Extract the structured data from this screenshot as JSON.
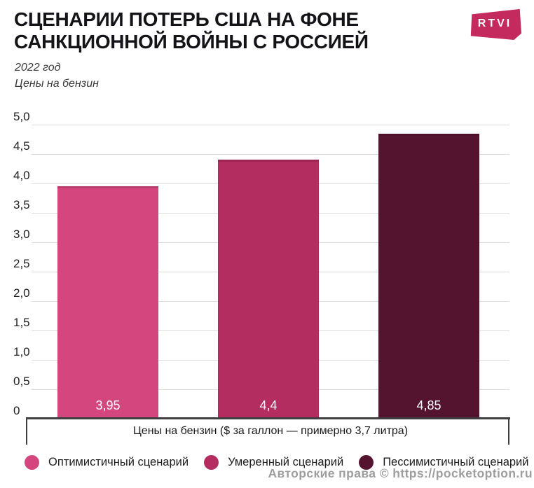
{
  "header": {
    "title_line1": "СЦЕНАРИИ ПОТЕРЬ США НА ФОНЕ",
    "title_line2": "САНКЦИОННОЙ ВОЙНЫ С РОССИЕЙ",
    "subtitle_year": "2022 год",
    "subtitle_metric": "Цены на бензин",
    "logo_text": "RTVI",
    "logo_color": "#c42a5e"
  },
  "chart_data": {
    "type": "bar",
    "title": "Цены на бензин, 2022 год",
    "categories": [
      "Оптимистичный сценарий",
      "Умеренный сценарий",
      "Пессимистичный сценарий"
    ],
    "values": [
      3.95,
      4.4,
      4.85
    ],
    "value_labels": [
      "3,95",
      "4,4",
      "4,85"
    ],
    "bar_colors": [
      "#d4477e",
      "#b42d60",
      "#541430"
    ],
    "xlabel": "Цены на бензин ($ за галлон — примерно 3,7 литра)",
    "ylabel": "",
    "ylim": [
      0,
      5
    ],
    "yticks": [
      {
        "value": 5.0,
        "label": "5,0"
      },
      {
        "value": 4.5,
        "label": "4,5"
      },
      {
        "value": 4.0,
        "label": "4,0"
      },
      {
        "value": 3.5,
        "label": "3,5"
      },
      {
        "value": 3.0,
        "label": "3,0"
      },
      {
        "value": 2.5,
        "label": "2,5"
      },
      {
        "value": 2.0,
        "label": "2,0"
      },
      {
        "value": 1.5,
        "label": "1,5"
      },
      {
        "value": 1.0,
        "label": "1,0"
      },
      {
        "value": 0.5,
        "label": "0,5"
      },
      {
        "value": 0,
        "label": "0"
      }
    ],
    "grid": "horizontal",
    "legend_position": "bottom"
  },
  "legend": {
    "items": [
      {
        "label": "Оптимистичный сценарий",
        "color": "#d4477e"
      },
      {
        "label": "Умеренный сценарий",
        "color": "#b42d60"
      },
      {
        "label": "Пессимистичный сценарий",
        "color": "#541430"
      }
    ]
  },
  "footer": {
    "watermark": "Авторские права © https://pocketoption.ru"
  }
}
